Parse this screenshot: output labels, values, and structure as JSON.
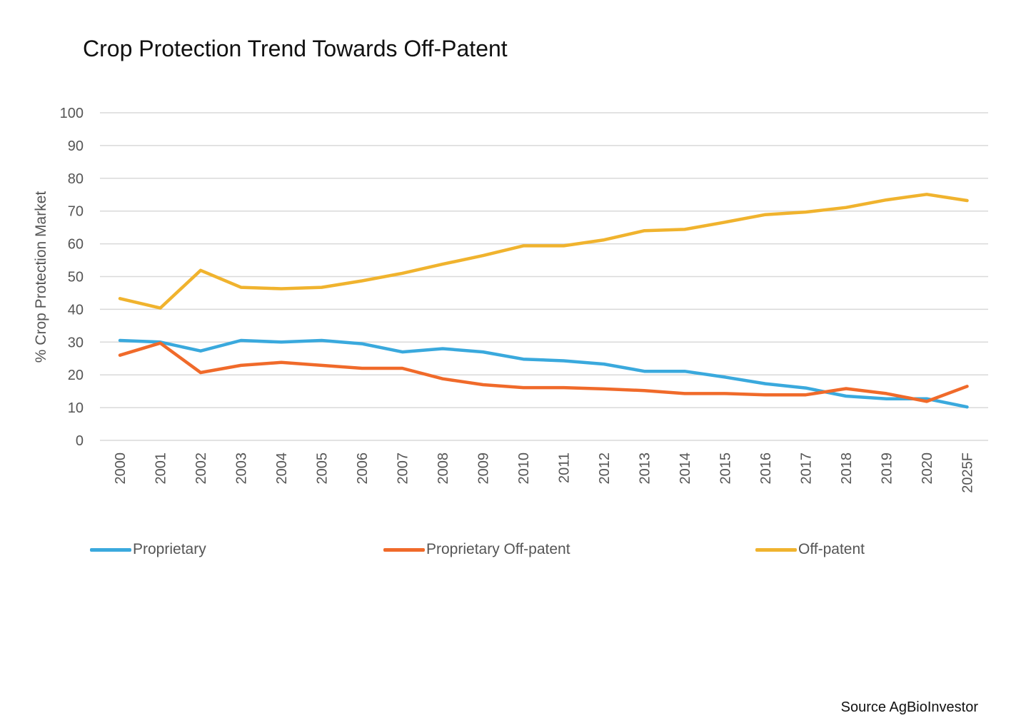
{
  "chart_data": {
    "type": "line",
    "title": "Crop Protection Trend Towards Off-Patent",
    "xlabel": "",
    "ylabel": "% Crop Protection Market",
    "ylim": [
      0,
      100
    ],
    "yticks": [
      0,
      10,
      20,
      30,
      40,
      50,
      60,
      70,
      80,
      90,
      100
    ],
    "categories": [
      "2000",
      "2001",
      "2002",
      "2003",
      "2004",
      "2005",
      "2006",
      "2007",
      "2008",
      "2009",
      "2010",
      "2011",
      "2012",
      "2013",
      "2014",
      "2015",
      "2016",
      "2017",
      "2018",
      "2019",
      "2020",
      "2025F"
    ],
    "series": [
      {
        "name": "Proprietary",
        "color": "#3aa9dd",
        "values": [
          30.5,
          30,
          27.3,
          30.5,
          30,
          30.5,
          29.5,
          27,
          28,
          27,
          24.8,
          24.3,
          23.3,
          21.1,
          21.1,
          19.3,
          17.3,
          16,
          13.5,
          12.7,
          12.7,
          10.2
        ]
      },
      {
        "name": "Proprietary Off-patent",
        "color": "#f06a2a",
        "values": [
          26,
          29.7,
          20.7,
          22.9,
          23.8,
          22.9,
          22,
          22,
          18.8,
          17,
          16.1,
          16.1,
          15.7,
          15.2,
          14.3,
          14.3,
          13.9,
          13.9,
          15.8,
          14.3,
          11.9,
          16.5
        ]
      },
      {
        "name": "Off-patent",
        "color": "#f0b32e",
        "values": [
          43.3,
          40.4,
          51.9,
          46.7,
          46.3,
          46.7,
          48.7,
          51,
          53.8,
          56.4,
          59.4,
          59.4,
          61.2,
          64,
          64.4,
          66.6,
          68.9,
          69.7,
          71.1,
          73.4,
          75.1,
          73.2
        ]
      }
    ],
    "grid": true,
    "legend_position": "bottom"
  },
  "source": "Source AgBioInvestor"
}
